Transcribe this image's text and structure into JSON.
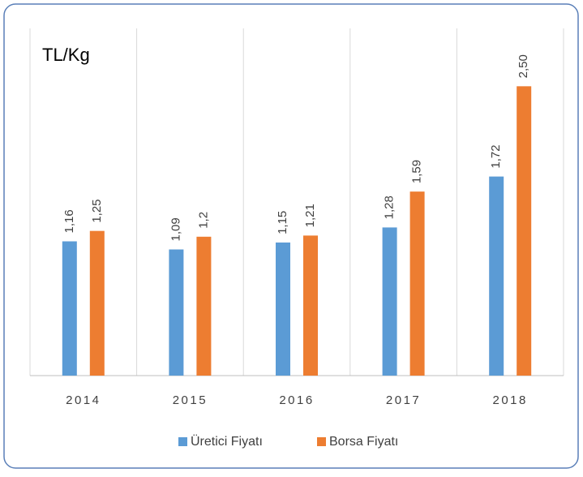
{
  "chart_data": {
    "type": "bar",
    "y_label": "TL/Kg",
    "categories": [
      "2014",
      "2015",
      "2016",
      "2017",
      "2018"
    ],
    "series": [
      {
        "name": "Üretici Fiyatı",
        "color": "#5b9bd5",
        "values": [
          1.16,
          1.09,
          1.15,
          1.28,
          1.72
        ],
        "value_labels": [
          "1,16",
          "1,09",
          "1,15",
          "1,28",
          "1,72"
        ]
      },
      {
        "name": "Borsa Fiyatı",
        "color": "#ed7d31",
        "values": [
          1.25,
          1.2,
          1.21,
          1.59,
          2.5
        ],
        "value_labels": [
          "1,25",
          "1,2",
          "1,21",
          "1,59",
          "2,50"
        ]
      }
    ],
    "ylim": [
      0,
      3
    ],
    "grid": true
  }
}
